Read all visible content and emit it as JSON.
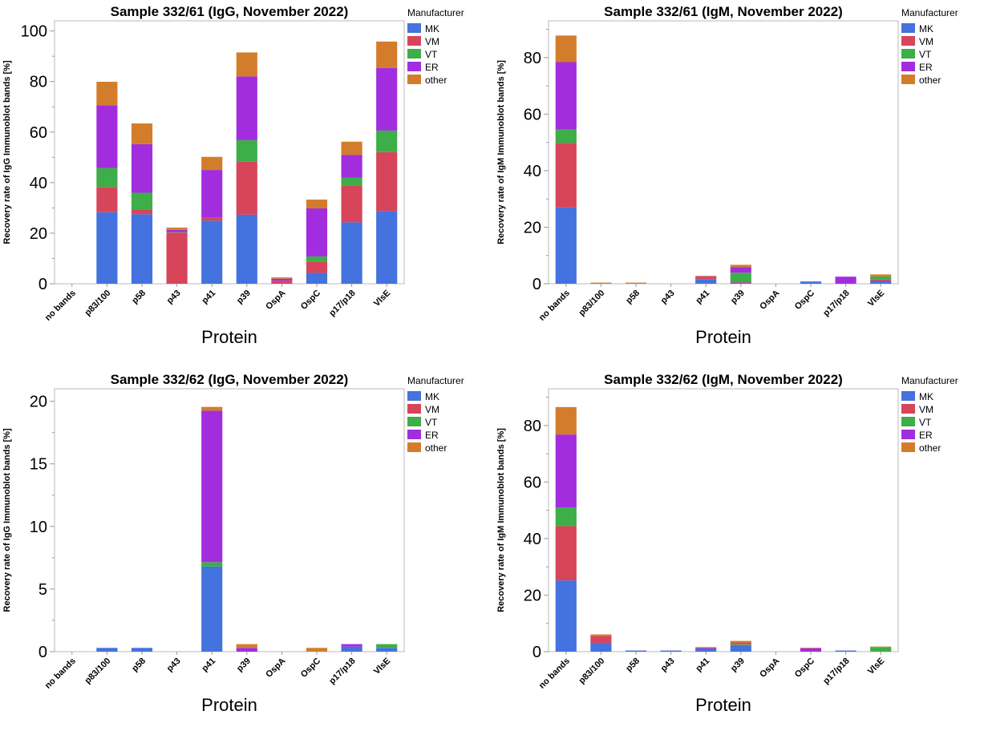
{
  "legend": {
    "title": "Manufacturer",
    "entries": [
      "MK",
      "VM",
      "VT",
      "ER",
      "other"
    ]
  },
  "colors": {
    "MK": "#4472DE",
    "VM": "#D7455A",
    "VT": "#3DAE48",
    "ER": "#A22DDE",
    "other": "#D37D2C"
  },
  "chart_data": [
    {
      "type": "bar",
      "stacked": true,
      "title": "Sample 332/61 (IgG, November 2022)",
      "xlabel": "Protein",
      "ylabel": "Recovery rate of IgG Immunoblot bands [%]",
      "categories": [
        "no bands",
        "p83/100",
        "p58",
        "p43",
        "p41",
        "p39",
        "OspA",
        "OspC",
        "p17/p18",
        "VlsE"
      ],
      "ylim": [
        0,
        104
      ],
      "yticks": [
        0,
        20,
        40,
        60,
        80,
        100
      ],
      "legend_position": "right",
      "grid": false,
      "series": [
        {
          "name": "MK",
          "values": [
            0,
            28.3,
            27.5,
            0,
            25,
            27.3,
            0,
            4.3,
            24.3,
            28.8
          ]
        },
        {
          "name": "VM",
          "values": [
            0,
            10,
            1.8,
            20.2,
            1.2,
            21,
            1.2,
            4.5,
            14.4,
            23.3
          ]
        },
        {
          "name": "VT",
          "values": [
            0,
            7.5,
            6.7,
            0.2,
            0,
            8.5,
            0,
            2,
            3.3,
            8.5
          ]
        },
        {
          "name": "ER",
          "values": [
            0,
            24.8,
            19.2,
            0.9,
            18.8,
            25.2,
            0.8,
            19,
            9,
            24.8
          ]
        },
        {
          "name": "other",
          "values": [
            0,
            9.3,
            8.2,
            0.9,
            5.2,
            9.5,
            0.5,
            3.5,
            5.2,
            10.4
          ]
        }
      ]
    },
    {
      "type": "bar",
      "stacked": true,
      "title": "Sample 332/61 (IgM, November 2022)",
      "xlabel": "Protein",
      "ylabel": "Recovery rate of IgM Immunoblot bands [%]",
      "categories": [
        "no bands",
        "p83/100",
        "p58",
        "p43",
        "p41",
        "p39",
        "OspA",
        "OspC",
        "p17/p18",
        "VlsE"
      ],
      "ylim": [
        0,
        93
      ],
      "yticks": [
        0,
        20,
        40,
        60,
        80
      ],
      "legend_position": "right",
      "grid": false,
      "series": [
        {
          "name": "MK",
          "values": [
            27,
            0,
            0,
            0,
            1.5,
            0.4,
            0,
            0.8,
            0,
            1
          ]
        },
        {
          "name": "VM",
          "values": [
            22.8,
            0,
            0,
            0,
            0.6,
            0.3,
            0,
            0,
            0,
            0.5
          ]
        },
        {
          "name": "VT",
          "values": [
            4.8,
            0,
            0,
            0,
            0,
            3.2,
            0,
            0,
            0,
            1.1
          ]
        },
        {
          "name": "ER",
          "values": [
            23.8,
            0,
            0,
            0,
            0.4,
            2,
            0,
            0,
            2.5,
            0
          ]
        },
        {
          "name": "other",
          "values": [
            9.4,
            0.4,
            0.4,
            0,
            0.3,
            0.8,
            0,
            0,
            0,
            0.7
          ]
        }
      ]
    },
    {
      "type": "bar",
      "stacked": true,
      "title": "Sample 332/62 (IgG, November 2022)",
      "xlabel": "Protein",
      "ylabel": "Recovery rate of IgG Immunoblot bands [%]",
      "categories": [
        "no bands",
        "p83/100",
        "p58",
        "p43",
        "p41",
        "p39",
        "OspA",
        "OspC",
        "p17/p18",
        "VlsE"
      ],
      "ylim": [
        0,
        21
      ],
      "yticks": [
        0,
        5,
        10,
        15,
        20
      ],
      "legend_position": "right",
      "grid": false,
      "series": [
        {
          "name": "MK",
          "values": [
            0,
            0.3,
            0.3,
            0,
            6.8,
            0,
            0,
            0,
            0.4,
            0.3
          ]
        },
        {
          "name": "VM",
          "values": [
            0,
            0,
            0,
            0,
            0,
            0,
            0,
            0,
            0,
            0
          ]
        },
        {
          "name": "VT",
          "values": [
            0,
            0,
            0,
            0,
            0.35,
            0,
            0,
            0,
            0,
            0.3
          ]
        },
        {
          "name": "ER",
          "values": [
            0,
            0,
            0,
            0,
            12.1,
            0.3,
            0,
            0,
            0.2,
            0
          ]
        },
        {
          "name": "other",
          "values": [
            0,
            0,
            0,
            0,
            0.3,
            0.3,
            0,
            0.3,
            0,
            0
          ]
        }
      ]
    },
    {
      "type": "bar",
      "stacked": true,
      "title": "Sample 332/62 (IgM, November 2022)",
      "xlabel": "Protein",
      "ylabel": "Recovery rate of IgM Immunoblot bands [%]",
      "categories": [
        "no bands",
        "p83/100",
        "p58",
        "p43",
        "p41",
        "p39",
        "OspA",
        "OspC",
        "p17/p18",
        "VlsE"
      ],
      "ylim": [
        0,
        93
      ],
      "yticks": [
        0,
        20,
        40,
        60,
        80
      ],
      "legend_position": "right",
      "grid": false,
      "series": [
        {
          "name": "MK",
          "values": [
            25.2,
            3.1,
            0.4,
            0.4,
            1,
            2,
            0,
            0,
            0.4,
            0
          ]
        },
        {
          "name": "VM",
          "values": [
            19.2,
            2.4,
            0,
            0,
            0,
            0.5,
            0,
            0,
            0,
            0
          ]
        },
        {
          "name": "VT",
          "values": [
            6.6,
            0,
            0,
            0,
            0,
            0.3,
            0,
            0,
            0,
            1.6
          ]
        },
        {
          "name": "ER",
          "values": [
            25.8,
            0,
            0,
            0,
            0.3,
            0.3,
            0,
            1.2,
            0,
            0
          ]
        },
        {
          "name": "other",
          "values": [
            9.7,
            0.6,
            0,
            0,
            0.3,
            0.7,
            0,
            0.2,
            0,
            0.2
          ]
        }
      ]
    }
  ]
}
